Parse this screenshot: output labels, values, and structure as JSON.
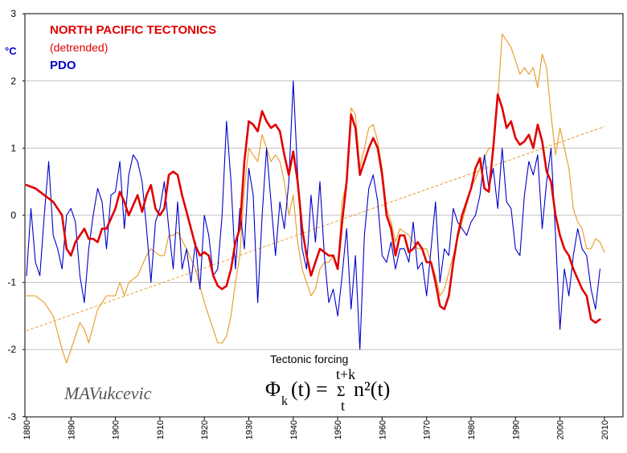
{
  "chart_data": {
    "type": "line",
    "title": "",
    "xlabel": "",
    "ylabel": "",
    "unit_label": "°C",
    "xlim": [
      1880,
      2011
    ],
    "ylim": [
      -3,
      3
    ],
    "x_ticks": [
      "1880",
      "1890",
      "1900",
      "1910",
      "1920",
      "1930",
      "1940",
      "1950",
      "1960",
      "1970",
      "1980",
      "1990",
      "2000",
      "2010"
    ],
    "y_ticks": [
      "3",
      "2",
      "1",
      "0",
      "-1",
      "-2",
      "-3"
    ],
    "grid": true,
    "legend": [
      {
        "text": "NORTH PACIFIC TECTONICS",
        "color": "#e00000"
      },
      {
        "text": "(detrended)",
        "color": "#e00000"
      },
      {
        "text": "PDO",
        "color": "#0000cc"
      }
    ],
    "annotation": "Tectonic forcing",
    "signature": "MAVukcevic",
    "formula": {
      "lhs_symbol": "Φ",
      "lhs_subscript": "k",
      "lhs_arg": "(t) =",
      "upper_limit": "t+k",
      "sum_symbol": "Σ",
      "lower_limit": "t",
      "rhs": "n²(t)"
    },
    "colors": {
      "tectonics": "#e00000",
      "pdo": "#0000cc",
      "tectonics_undetrended": "#e8a030",
      "trend": "#e8a030",
      "grid": "#c0c0c0"
    },
    "series": [
      {
        "name": "NORTH PACIFIC TECTONICS",
        "style": "thick",
        "x": [
          1880,
          1882,
          1884,
          1886,
          1888,
          1889,
          1890,
          1891,
          1892,
          1893,
          1894,
          1895,
          1896,
          1897,
          1898,
          1900,
          1901,
          1902,
          1903,
          1905,
          1906,
          1907,
          1908,
          1909,
          1910,
          1911,
          1912,
          1913,
          1914,
          1915,
          1916,
          1917,
          1918,
          1919,
          1920,
          1921,
          1922,
          1923,
          1924,
          1925,
          1926,
          1927,
          1928,
          1929,
          1930,
          1931,
          1932,
          1933,
          1934,
          1935,
          1936,
          1937,
          1938,
          1939,
          1940,
          1941,
          1942,
          1943,
          1944,
          1945,
          1946,
          1947,
          1948,
          1949,
          1950,
          1951,
          1952,
          1953,
          1954,
          1955,
          1956,
          1957,
          1958,
          1959,
          1960,
          1961,
          1962,
          1963,
          1964,
          1965,
          1966,
          1967,
          1968,
          1969,
          1970,
          1971,
          1972,
          1973,
          1974,
          1975,
          1976,
          1977,
          1978,
          1979,
          1980,
          1981,
          1982,
          1983,
          1984,
          1985,
          1986,
          1987,
          1988,
          1989,
          1990,
          1991,
          1992,
          1993,
          1994,
          1995,
          1996,
          1997,
          1998,
          1999,
          2000,
          2001,
          2002,
          2003,
          2004,
          2005,
          2006,
          2007,
          2008,
          2009
        ],
        "values": [
          0.45,
          0.4,
          0.3,
          0.2,
          0.0,
          -0.5,
          -0.6,
          -0.4,
          -0.3,
          -0.2,
          -0.35,
          -0.35,
          -0.4,
          -0.2,
          -0.2,
          0.1,
          0.35,
          0.2,
          0.0,
          0.3,
          0.05,
          0.3,
          0.45,
          0.1,
          0.0,
          0.1,
          0.6,
          0.65,
          0.6,
          0.3,
          0.05,
          -0.2,
          -0.45,
          -0.6,
          -0.55,
          -0.6,
          -0.9,
          -1.05,
          -1.1,
          -1.05,
          -0.8,
          -0.4,
          -0.2,
          0.8,
          1.4,
          1.35,
          1.25,
          1.55,
          1.4,
          1.3,
          1.35,
          1.25,
          0.9,
          0.6,
          0.95,
          0.5,
          -0.2,
          -0.6,
          -0.9,
          -0.7,
          -0.5,
          -0.55,
          -0.6,
          -0.6,
          -0.8,
          -0.1,
          0.5,
          1.5,
          1.3,
          0.6,
          0.8,
          1.0,
          1.15,
          1.0,
          0.6,
          0.0,
          -0.2,
          -0.6,
          -0.3,
          -0.3,
          -0.55,
          -0.5,
          -0.4,
          -0.5,
          -0.7,
          -0.7,
          -1.0,
          -1.35,
          -1.4,
          -1.2,
          -0.7,
          -0.3,
          0.0,
          0.2,
          0.4,
          0.7,
          0.85,
          0.4,
          0.35,
          1.0,
          1.8,
          1.6,
          1.3,
          1.4,
          1.15,
          1.05,
          1.1,
          1.2,
          1.0,
          1.35,
          1.1,
          0.65,
          0.5,
          0.0,
          -0.3,
          -0.5,
          -0.6,
          -0.8,
          -0.95,
          -1.1,
          -1.2,
          -1.55,
          -1.6,
          -1.55
        ]
      },
      {
        "name": "PDO",
        "style": "thin",
        "x": [
          1880,
          1881,
          1882,
          1883,
          1884,
          1885,
          1886,
          1887,
          1888,
          1889,
          1890,
          1891,
          1892,
          1893,
          1894,
          1895,
          1896,
          1897,
          1898,
          1899,
          1900,
          1901,
          1902,
          1903,
          1904,
          1905,
          1906,
          1907,
          1908,
          1909,
          1910,
          1911,
          1912,
          1913,
          1914,
          1915,
          1916,
          1917,
          1918,
          1919,
          1920,
          1921,
          1922,
          1923,
          1924,
          1925,
          1926,
          1927,
          1928,
          1929,
          1930,
          1931,
          1932,
          1933,
          1934,
          1935,
          1936,
          1937,
          1938,
          1939,
          1940,
          1941,
          1942,
          1943,
          1944,
          1945,
          1946,
          1947,
          1948,
          1949,
          1950,
          1951,
          1952,
          1953,
          1954,
          1955,
          1956,
          1957,
          1958,
          1959,
          1960,
          1961,
          1962,
          1963,
          1964,
          1965,
          1966,
          1967,
          1968,
          1969,
          1970,
          1971,
          1972,
          1973,
          1974,
          1975,
          1976,
          1977,
          1978,
          1979,
          1980,
          1981,
          1982,
          1983,
          1984,
          1985,
          1986,
          1987,
          1988,
          1989,
          1990,
          1991,
          1992,
          1993,
          1994,
          1995,
          1996,
          1997,
          1998,
          1999,
          2000,
          2001,
          2002,
          2003,
          2004,
          2005,
          2006,
          2007,
          2008,
          2009
        ],
        "values": [
          -0.9,
          0.1,
          -0.7,
          -0.9,
          0.0,
          0.8,
          -0.3,
          -0.5,
          -0.8,
          0.0,
          0.1,
          -0.1,
          -0.9,
          -1.3,
          -0.5,
          0.0,
          0.4,
          0.2,
          -0.5,
          0.3,
          0.35,
          0.8,
          -0.2,
          0.6,
          0.9,
          0.8,
          0.5,
          -0.2,
          -1.0,
          -0.1,
          0.1,
          0.5,
          -0.2,
          -0.8,
          0.2,
          -0.8,
          -0.5,
          -1.0,
          -0.4,
          -1.1,
          0.0,
          -0.3,
          -0.9,
          -0.8,
          0.0,
          1.4,
          0.5,
          -0.8,
          0.1,
          -0.5,
          0.7,
          0.3,
          -1.3,
          0.0,
          1.0,
          0.2,
          -0.6,
          0.2,
          -0.2,
          0.5,
          2.0,
          0.6,
          -0.5,
          -0.8,
          0.3,
          -0.4,
          0.5,
          -0.6,
          -1.3,
          -1.1,
          -1.5,
          -0.9,
          -0.2,
          -1.4,
          -0.6,
          -2.0,
          -0.3,
          0.4,
          0.6,
          0.2,
          -0.6,
          -0.7,
          -0.4,
          -0.8,
          -0.5,
          -0.5,
          -0.7,
          -0.1,
          -0.8,
          -0.7,
          -1.2,
          -0.5,
          0.2,
          -1.0,
          -0.5,
          -0.6,
          0.1,
          -0.1,
          -0.2,
          -0.3,
          -0.1,
          0.0,
          0.3,
          0.9,
          0.4,
          0.7,
          0.1,
          1.0,
          0.2,
          0.1,
          -0.5,
          -0.6,
          0.3,
          0.8,
          0.6,
          0.9,
          -0.2,
          0.5,
          1.0,
          -0.3,
          -1.7,
          -0.8,
          -1.2,
          -0.6,
          -0.2,
          -0.5,
          -0.6,
          -1.1,
          -1.4,
          -0.8
        ]
      },
      {
        "name": "",
        "style": "thin",
        "x": [
          1880,
          1882,
          1884,
          1886,
          1888,
          1889,
          1890,
          1891,
          1892,
          1893,
          1894,
          1896,
          1898,
          1900,
          1901,
          1902,
          1903,
          1905,
          1907,
          1908,
          1910,
          1911,
          1912,
          1913,
          1914,
          1916,
          1918,
          1920,
          1921,
          1922,
          1923,
          1924,
          1925,
          1926,
          1927,
          1928,
          1929,
          1930,
          1931,
          1932,
          1933,
          1934,
          1935,
          1936,
          1937,
          1938,
          1939,
          1940,
          1941,
          1942,
          1943,
          1944,
          1945,
          1946,
          1947,
          1948,
          1949,
          1950,
          1951,
          1952,
          1953,
          1954,
          1955,
          1956,
          1957,
          1958,
          1959,
          1960,
          1961,
          1962,
          1963,
          1964,
          1966,
          1968,
          1970,
          1972,
          1973,
          1974,
          1976,
          1978,
          1980,
          1982,
          1984,
          1985,
          1986,
          1987,
          1988,
          1989,
          1990,
          1991,
          1992,
          1993,
          1994,
          1995,
          1996,
          1997,
          1998,
          1999,
          2000,
          2001,
          2002,
          2003,
          2004,
          2005,
          2006,
          2007,
          2008,
          2009,
          2010
        ],
        "values": [
          -1.2,
          -1.2,
          -1.3,
          -1.5,
          -2.0,
          -2.2,
          -2.0,
          -1.8,
          -1.6,
          -1.7,
          -1.9,
          -1.4,
          -1.2,
          -1.2,
          -1.0,
          -1.2,
          -1.0,
          -0.9,
          -0.6,
          -0.5,
          -0.6,
          -0.6,
          -0.3,
          -0.3,
          -0.25,
          -0.5,
          -0.8,
          -1.3,
          -1.5,
          -1.7,
          -1.9,
          -1.9,
          -1.8,
          -1.5,
          -1.0,
          -0.6,
          0.4,
          1.0,
          0.9,
          0.8,
          1.2,
          1.0,
          0.8,
          0.9,
          0.8,
          0.5,
          0.0,
          0.3,
          -0.4,
          -0.8,
          -1.0,
          -1.2,
          -1.1,
          -0.8,
          -0.7,
          -0.7,
          -0.6,
          -0.8,
          0.2,
          0.5,
          1.6,
          1.5,
          0.7,
          1.0,
          1.3,
          1.35,
          1.1,
          0.7,
          0.1,
          -0.1,
          -0.4,
          -0.2,
          -0.3,
          -0.5,
          -0.5,
          -0.9,
          -1.2,
          -1.1,
          -0.6,
          -0.1,
          0.4,
          0.7,
          1.0,
          1.0,
          1.7,
          2.7,
          2.6,
          2.5,
          2.3,
          2.1,
          2.2,
          2.1,
          2.2,
          1.9,
          2.4,
          2.2,
          1.5,
          0.9,
          1.3,
          1.0,
          0.7,
          0.1,
          -0.1,
          -0.2,
          -0.5,
          -0.5,
          -0.35,
          -0.4,
          -0.55
        ]
      },
      {
        "name": "",
        "style": "dashed",
        "x": [
          1880,
          2010
        ],
        "values": [
          -1.72,
          1.32
        ]
      }
    ]
  }
}
